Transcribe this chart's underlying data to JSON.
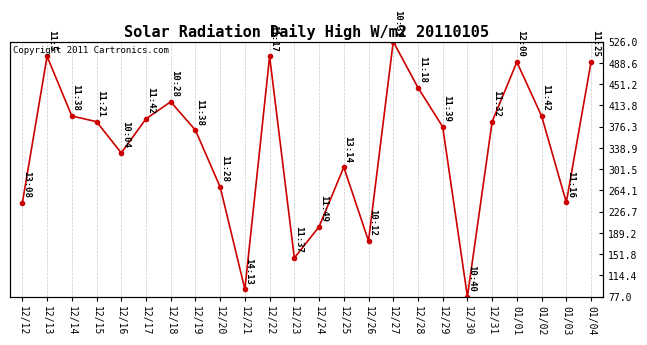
{
  "title": "Solar Radiation Daily High W/m2 20110105",
  "copyright_text": "Copyright 2011 Cartronics.com",
  "background_color": "#ffffff",
  "plot_bg_color": "#ffffff",
  "line_color": "#cc0000",
  "marker_color": "#cc0000",
  "grid_color": "#c8c8c8",
  "dates": [
    "12/12",
    "12/13",
    "12/14",
    "12/15",
    "12/16",
    "12/17",
    "12/18",
    "12/19",
    "12/20",
    "12/21",
    "12/22",
    "12/23",
    "12/24",
    "12/25",
    "12/26",
    "12/27",
    "12/28",
    "12/29",
    "12/30",
    "12/31",
    "01/01",
    "01/02",
    "01/03",
    "01/04"
  ],
  "values": [
    242,
    500,
    395,
    385,
    330,
    390,
    420,
    370,
    270,
    90,
    500,
    145,
    200,
    305,
    175,
    526,
    445,
    376,
    77,
    385,
    490,
    395,
    243,
    490
  ],
  "annotations": [
    "13:08",
    "11:5",
    "11:38",
    "11:21",
    "10:04",
    "11:42",
    "10:28",
    "11:38",
    "11:28",
    "14:13",
    "11:17",
    "11:37",
    "11:49",
    "13:14",
    "10:12",
    "10:31",
    "11:18",
    "11:39",
    "10:40",
    "11:32",
    "12:00",
    "11:42",
    "11:16",
    "11:25"
  ],
  "ylim_min": 77.0,
  "ylim_max": 526.0,
  "yticks": [
    77.0,
    114.4,
    151.8,
    189.2,
    226.7,
    264.1,
    301.5,
    338.9,
    376.3,
    413.8,
    451.2,
    488.6,
    526.0
  ],
  "title_fontsize": 11,
  "annotation_fontsize": 6.5,
  "tick_fontsize": 7,
  "copyright_fontsize": 6.5
}
